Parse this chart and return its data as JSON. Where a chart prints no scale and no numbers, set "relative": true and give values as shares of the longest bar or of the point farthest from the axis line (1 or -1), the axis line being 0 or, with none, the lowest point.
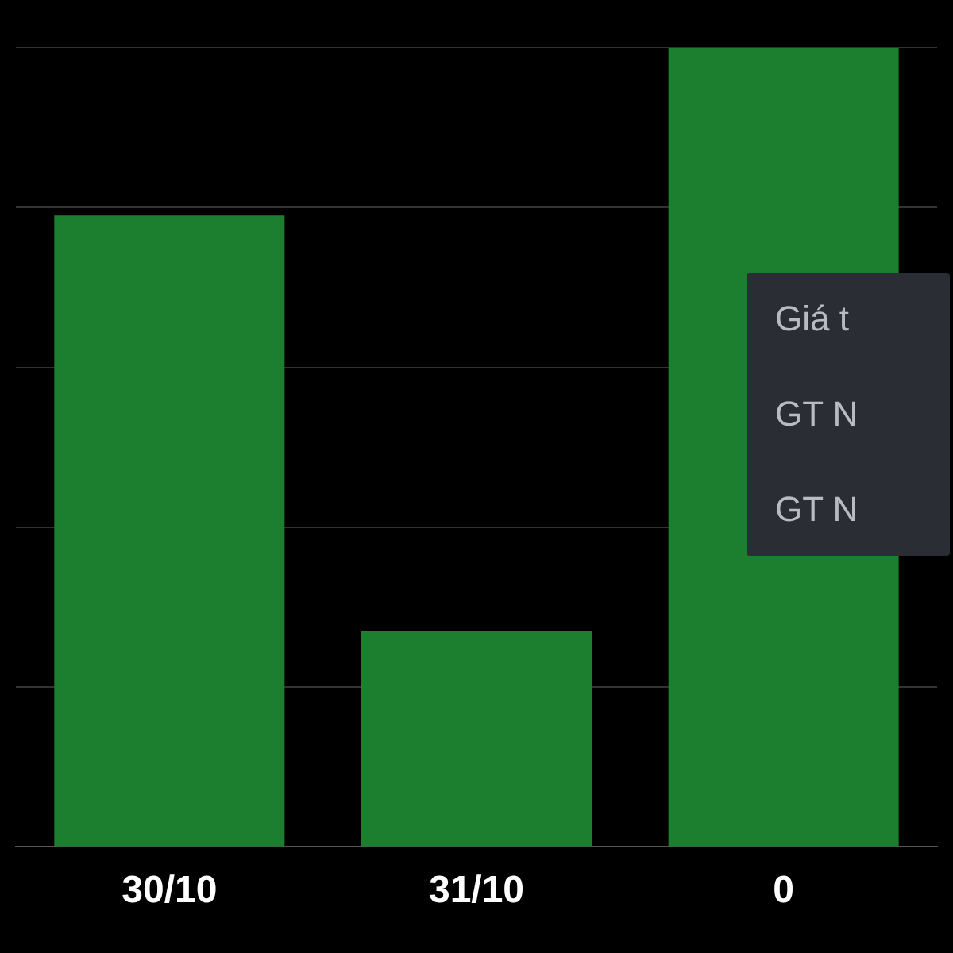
{
  "chart_data": {
    "type": "bar",
    "categories": [
      "30/10",
      "31/10",
      "0"
    ],
    "values": [
      0.79,
      0.27,
      1
    ],
    "color": "#1c7f2f",
    "relative": true,
    "grid": "y",
    "annotations": [
      "Giá t",
      "GT N",
      "GT N"
    ]
  }
}
